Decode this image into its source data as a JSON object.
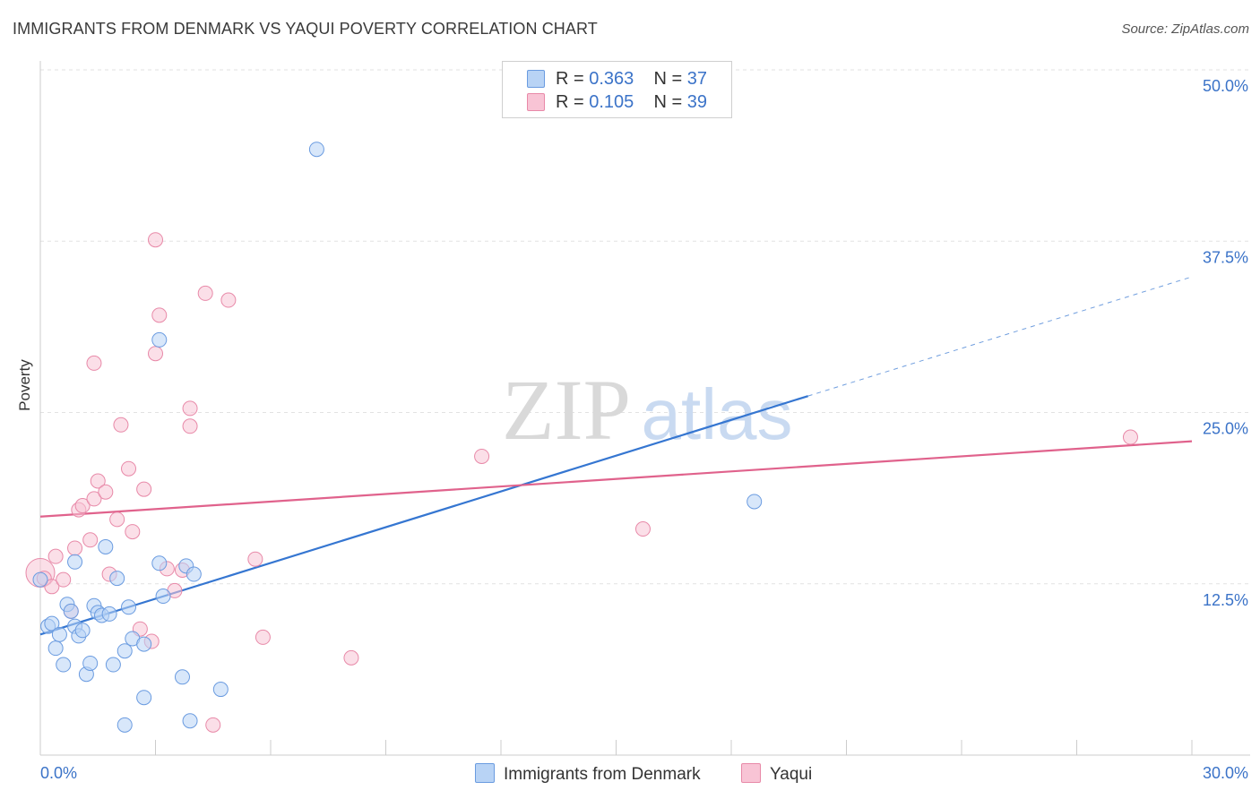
{
  "header": {
    "title": "IMMIGRANTS FROM DENMARK VS YAQUI POVERTY CORRELATION CHART",
    "source": "Source: ZipAtlas.com"
  },
  "watermark": {
    "zip": "ZIP",
    "atlas": "atlas"
  },
  "legend": {
    "rows": [
      {
        "r_label": "R =",
        "r_value": "0.363",
        "n_label": "N =",
        "n_value": "37"
      },
      {
        "r_label": "R =",
        "r_value": "0.105",
        "n_label": "N =",
        "n_value": "39"
      }
    ]
  },
  "colors": {
    "blue_fill": "#b8d3f5",
    "blue_stroke": "#6a9be0",
    "blue_line": "#3576d1",
    "pink_fill": "#f8c4d5",
    "pink_stroke": "#e889a8",
    "pink_line": "#e0628c",
    "tick_label": "#3b73c8",
    "grid": "#e2e2e2"
  },
  "chart_data": {
    "type": "scatter",
    "title": "IMMIGRANTS FROM DENMARK VS YAQUI POVERTY CORRELATION CHART",
    "ylabel": "Poverty",
    "xlabel": "",
    "xlim": [
      0,
      30
    ],
    "ylim": [
      0,
      50
    ],
    "x_tick_labels": [
      "0.0%",
      "30.0%"
    ],
    "y_ticks": [
      12.5,
      25.0,
      37.5,
      50.0
    ],
    "y_tick_labels": [
      "12.5%",
      "25.0%",
      "37.5%",
      "50.0%"
    ],
    "grid": "horizontal dashed",
    "legend_position": "top-center and bottom",
    "series": [
      {
        "name": "Immigrants from Denmark",
        "color": "blue",
        "R": 0.363,
        "N": 37,
        "trend": {
          "x": [
            0.0,
            20.0
          ],
          "y": [
            8.8,
            26.2
          ],
          "dashed_to": [
            30.0,
            34.9
          ]
        },
        "points": [
          [
            0.0,
            12.8
          ],
          [
            0.2,
            9.4
          ],
          [
            0.3,
            9.6
          ],
          [
            0.4,
            7.8
          ],
          [
            0.5,
            8.8
          ],
          [
            0.6,
            6.6
          ],
          [
            0.7,
            11.0
          ],
          [
            0.8,
            10.5
          ],
          [
            0.9,
            9.4
          ],
          [
            0.9,
            14.1
          ],
          [
            1.0,
            8.7
          ],
          [
            1.1,
            9.1
          ],
          [
            1.2,
            5.9
          ],
          [
            1.3,
            6.7
          ],
          [
            1.4,
            10.9
          ],
          [
            1.5,
            10.4
          ],
          [
            1.6,
            10.2
          ],
          [
            1.7,
            15.2
          ],
          [
            1.8,
            10.3
          ],
          [
            1.9,
            6.6
          ],
          [
            2.0,
            12.9
          ],
          [
            2.2,
            7.6
          ],
          [
            2.2,
            2.2
          ],
          [
            2.3,
            10.8
          ],
          [
            2.4,
            8.5
          ],
          [
            2.7,
            8.1
          ],
          [
            2.7,
            4.2
          ],
          [
            3.1,
            30.3
          ],
          [
            3.1,
            14.0
          ],
          [
            3.2,
            11.6
          ],
          [
            3.7,
            5.7
          ],
          [
            3.8,
            13.8
          ],
          [
            3.9,
            2.5
          ],
          [
            4.0,
            13.2
          ],
          [
            4.7,
            4.8
          ],
          [
            7.2,
            44.2
          ],
          [
            18.6,
            18.5
          ]
        ]
      },
      {
        "name": "Yaqui",
        "color": "pink",
        "R": 0.105,
        "N": 39,
        "trend": {
          "x": [
            0.0,
            30.0
          ],
          "y": [
            17.4,
            22.9
          ]
        },
        "points": [
          [
            0.0,
            13.3
          ],
          [
            0.1,
            12.9
          ],
          [
            0.3,
            12.3
          ],
          [
            0.4,
            14.5
          ],
          [
            0.6,
            12.8
          ],
          [
            0.8,
            10.5
          ],
          [
            0.9,
            15.1
          ],
          [
            1.0,
            17.9
          ],
          [
            1.1,
            18.2
          ],
          [
            1.3,
            15.7
          ],
          [
            1.4,
            28.6
          ],
          [
            1.4,
            18.7
          ],
          [
            1.5,
            20.0
          ],
          [
            1.7,
            19.2
          ],
          [
            1.8,
            13.2
          ],
          [
            2.0,
            17.2
          ],
          [
            2.1,
            24.1
          ],
          [
            2.3,
            20.9
          ],
          [
            2.4,
            16.3
          ],
          [
            2.6,
            9.2
          ],
          [
            2.7,
            19.4
          ],
          [
            2.9,
            8.3
          ],
          [
            3.0,
            29.3
          ],
          [
            3.0,
            37.6
          ],
          [
            3.1,
            32.1
          ],
          [
            3.3,
            13.6
          ],
          [
            3.5,
            12.0
          ],
          [
            3.7,
            13.5
          ],
          [
            3.9,
            25.3
          ],
          [
            3.9,
            24.0
          ],
          [
            4.3,
            33.7
          ],
          [
            4.5,
            2.2
          ],
          [
            4.9,
            33.2
          ],
          [
            5.6,
            14.3
          ],
          [
            5.8,
            8.6
          ],
          [
            8.1,
            7.1
          ],
          [
            11.5,
            21.8
          ],
          [
            15.7,
            16.5
          ],
          [
            28.4,
            23.2
          ]
        ]
      }
    ]
  }
}
